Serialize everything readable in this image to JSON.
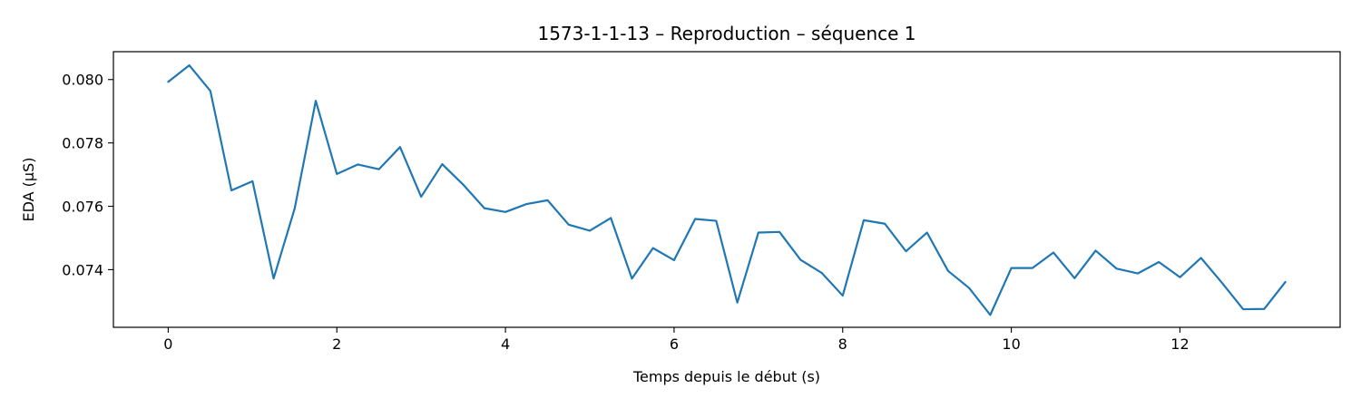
{
  "chart_data": {
    "type": "line",
    "title": "1573-1-1-13 – Reproduction – séquence 1",
    "xlabel": "Temps depuis le début (s)",
    "ylabel": "EDA (µS)",
    "xlim": [
      -0.65,
      13.9
    ],
    "ylim": [
      0.07218,
      0.08088
    ],
    "x_ticks": [
      0,
      2,
      4,
      6,
      8,
      10,
      12
    ],
    "x_tick_labels": [
      "0",
      "2",
      "4",
      "6",
      "8",
      "10",
      "12"
    ],
    "y_ticks": [
      0.074,
      0.076,
      0.078,
      0.08
    ],
    "y_tick_labels": [
      "0.074",
      "0.076",
      "0.078",
      "0.080"
    ],
    "grid": false,
    "line_color": "#1f77b4",
    "series": [
      {
        "x": [
          0,
          0.25,
          0.5,
          0.75,
          1.0,
          1.25,
          1.5,
          1.75,
          2.0,
          2.25,
          2.5,
          2.75,
          3.0,
          3.25,
          3.5,
          3.75,
          4.0,
          4.25,
          4.5,
          4.75,
          5.0,
          5.25,
          5.5,
          5.75,
          6.0,
          6.25,
          6.5,
          6.75,
          7.0,
          7.25,
          7.5,
          7.75,
          8.0,
          8.25,
          8.5,
          8.75,
          9.0,
          9.25,
          9.5,
          9.75,
          10.0,
          10.25,
          10.5,
          10.75,
          11.0,
          11.25,
          11.5,
          11.75,
          12.0,
          12.25,
          12.5,
          12.75,
          13.0,
          13.25
        ],
        "y": [
          0.07993,
          0.08045,
          0.07964,
          0.0765,
          0.07679,
          0.07372,
          0.07593,
          0.07933,
          0.07702,
          0.07732,
          0.07717,
          0.07787,
          0.0763,
          0.07733,
          0.07668,
          0.07594,
          0.07582,
          0.07607,
          0.07619,
          0.07542,
          0.07523,
          0.07563,
          0.07372,
          0.07468,
          0.0743,
          0.0756,
          0.07554,
          0.07296,
          0.07517,
          0.07519,
          0.07431,
          0.0739,
          0.07318,
          0.07556,
          0.07545,
          0.07458,
          0.07517,
          0.07396,
          0.07342,
          0.07257,
          0.07405,
          0.07405,
          0.07454,
          0.07373,
          0.0746,
          0.07403,
          0.07388,
          0.07424,
          0.07376,
          0.07437,
          0.07358,
          0.07275,
          0.07276,
          0.07361
        ]
      }
    ]
  }
}
